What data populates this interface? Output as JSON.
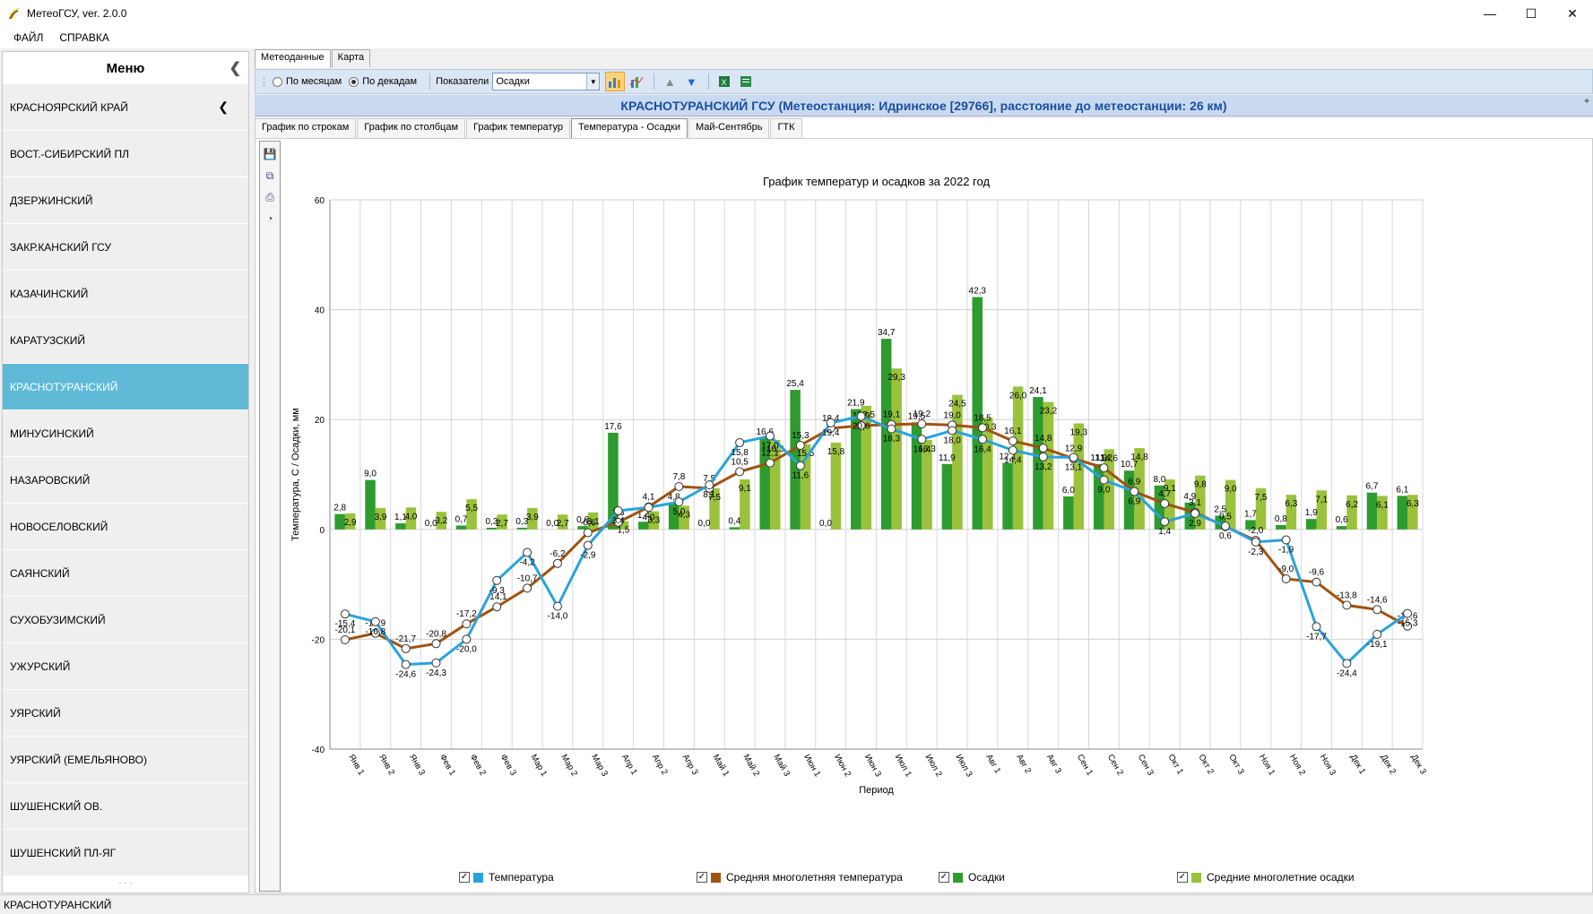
{
  "window": {
    "title": "МетеоГСУ, ver. 2.0.0"
  },
  "menu": {
    "file": "ФАЙЛ",
    "help": "СПРАВКА"
  },
  "sidebar": {
    "title": "Меню",
    "items": [
      {
        "label": "КРАСНОЯРСКИЙ КРАЙ"
      },
      {
        "label": "ВОСТ.-СИБИРСКИЙ ПЛ"
      },
      {
        "label": "ДЗЕРЖИНСКИЙ"
      },
      {
        "label": "ЗАКР.КАНСКИЙ ГСУ"
      },
      {
        "label": "КАЗАЧИНСКИЙ"
      },
      {
        "label": "КАРАТУЗСКИЙ"
      },
      {
        "label": "КРАСНОТУРАНСКИЙ"
      },
      {
        "label": "МИНУСИНСКИЙ"
      },
      {
        "label": "НАЗАРОВСКИЙ"
      },
      {
        "label": "НОВОСЕЛОВСКИЙ"
      },
      {
        "label": "САЯНСКИЙ"
      },
      {
        "label": "СУХОБУЗИМСКИЙ"
      },
      {
        "label": "УЖУРСКИЙ"
      },
      {
        "label": "УЯРСКИЙ"
      },
      {
        "label": "УЯРСКИЙ (ЕМЕЛЬЯНОВО)"
      },
      {
        "label": "ШУШЕНСКИЙ ОВ."
      },
      {
        "label": "ШУШЕНСКИЙ ПЛ-ЯГ"
      }
    ]
  },
  "tabs": [
    "Метеоданные",
    "Карта"
  ],
  "toolbar": {
    "by_month": "По месяцам",
    "by_decade": "По декадам",
    "indicators": "Показатели",
    "selected": "Осадки"
  },
  "station": "КРАСНОТУРАНСКИЙ ГСУ (Метеостанция: Идринское [29766], расстояние до метеостанции: 26 км)",
  "subtabs": [
    "График по строкам",
    "График по столбцам",
    "График температур",
    "Температура - Осадки",
    "Май-Сентябрь",
    "ГТК"
  ],
  "status": "КРАСНОТУРАНСКИЙ",
  "colors": {
    "temp": "#29a3dd",
    "avg_temp": "#a0520f",
    "precip": "#2e9b2e",
    "avg_precip": "#9ac23c"
  },
  "chart_data": {
    "type": "bar",
    "title": "График температур и осадков за 2022 год",
    "xlabel": "Период",
    "ylabel": "Температура, С / Осадки, мм",
    "ylim": [
      -40,
      60
    ],
    "yticks": [
      -40,
      -20,
      0,
      20,
      40,
      60
    ],
    "categories": [
      "Янв 1",
      "Янв 2",
      "Янв 3",
      "Фев 1",
      "Фев 2",
      "Фев 3",
      "Мар 1",
      "Мар 2",
      "Мар 3",
      "Апр 1",
      "Апр 2",
      "Апр 3",
      "Май 1",
      "Май 2",
      "Май 3",
      "Июн 1",
      "Июн 2",
      "Июн 3",
      "Июл 1",
      "Июл 2",
      "Июл 3",
      "Авг 1",
      "Авг 2",
      "Авг 3",
      "Сен 1",
      "Сен 2",
      "Сен 3",
      "Окт 1",
      "Окт 2",
      "Окт 3",
      "Ноя 1",
      "Ноя 2",
      "Ноя 3",
      "Дек 1",
      "Дек 2",
      "Дек 3"
    ],
    "series": [
      {
        "name": "Температура",
        "values": [
          -15.4,
          -16.8,
          -24.6,
          -24.3,
          -20.0,
          -9.3,
          -4.2,
          -14.0,
          -2.9,
          3.4,
          4.0,
          5.0,
          8.1,
          15.8,
          17.0,
          11.6,
          19.4,
          20.6,
          18.3,
          16.4,
          18.0,
          16.4,
          14.4,
          13.2,
          13.1,
          9.0,
          6.9,
          1.4,
          2.9,
          0.6,
          -2.3,
          -1.9,
          -17.7,
          -24.4,
          -19.1,
          -15.3
        ]
      },
      {
        "name": "Средняя многолетняя температура",
        "values": [
          -20.1,
          -18.9,
          -21.7,
          -20.8,
          -17.2,
          -14.1,
          -10.7,
          -6.2,
          -0.6,
          1.3,
          4.1,
          7.8,
          7.5,
          10.5,
          12.1,
          15.3,
          18.4,
          18.9,
          19.1,
          19.2,
          19.0,
          18.5,
          16.1,
          14.8,
          12.9,
          11.2,
          6.9,
          4.7,
          3.1,
          0.5,
          -2.0,
          -9.0,
          -9.6,
          -13.8,
          -14.6,
          -17.6
        ]
      },
      {
        "name": "Осадки",
        "values": [
          2.8,
          9.0,
          1.1,
          0.0,
          0.7,
          0.3,
          0.3,
          0.0,
          0.6,
          17.6,
          1.4,
          4.8,
          0.0,
          0.4,
          16.6,
          25.4,
          0.0,
          21.9,
          34.7,
          19.5,
          11.9,
          42.3,
          12.1,
          24.1,
          6.0,
          11.9,
          10.7,
          8.0,
          4.9,
          2.5,
          1.7,
          0.8,
          1.9,
          0.6,
          6.7,
          6.1
        ]
      },
      {
        "name": "Средние многолетние осадки",
        "values": [
          2.9,
          3.9,
          4.0,
          3.2,
          5.5,
          2.7,
          3.9,
          2.7,
          3.1,
          1.5,
          3.3,
          4.3,
          7.5,
          9.1,
          16.3,
          15.5,
          15.8,
          22.5,
          29.3,
          16.3,
          24.5,
          20.3,
          26.0,
          23.2,
          19.3,
          14.6,
          14.8,
          9.1,
          9.8,
          9.0,
          7.5,
          6.3,
          7.1,
          6.2,
          6.1,
          6.3
        ]
      }
    ]
  }
}
